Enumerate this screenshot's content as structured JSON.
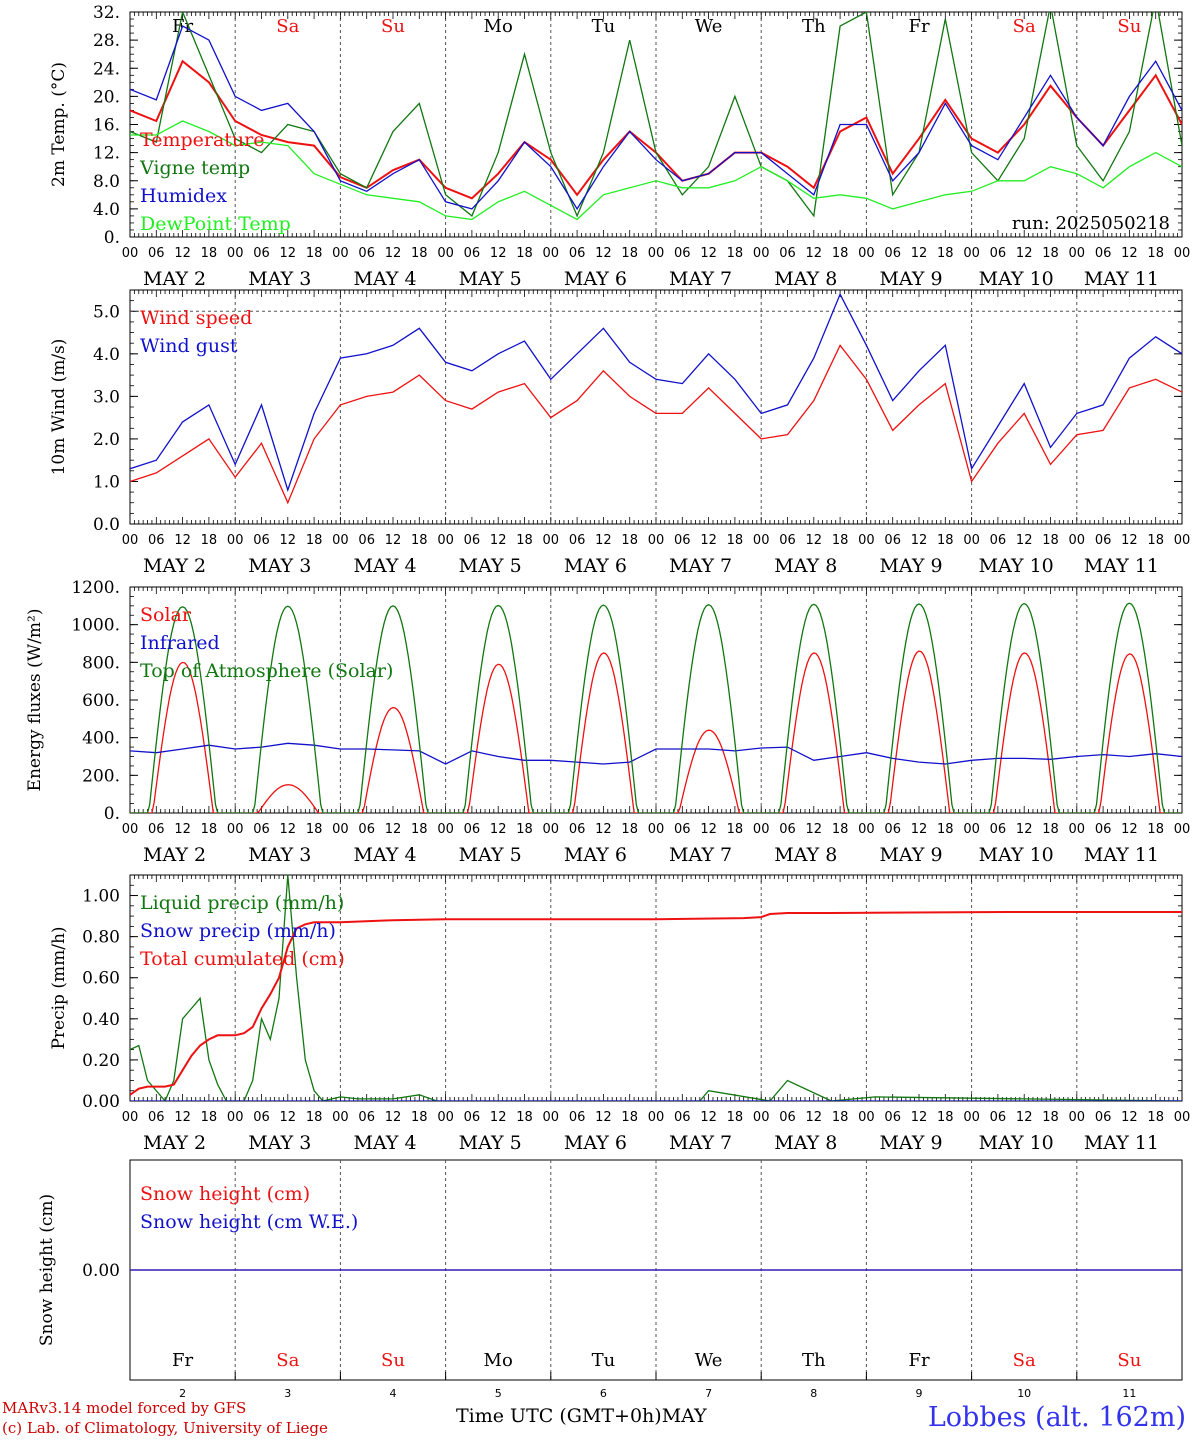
{
  "days": {
    "weekday": [
      "Fr",
      "Sa",
      "Su",
      "Mo",
      "Tu",
      "We",
      "Th",
      "Fr",
      "Sa",
      "Su"
    ],
    "weekend": [
      false,
      true,
      true,
      false,
      false,
      false,
      false,
      false,
      true,
      true
    ],
    "dates": [
      "MAY  2",
      "MAY  3",
      "MAY  4",
      "MAY  5",
      "MAY  6",
      "MAY  7",
      "MAY  8",
      "MAY  9",
      "MAY 10",
      "MAY 11"
    ],
    "daynum": [
      "2",
      "3",
      "4",
      "5",
      "6",
      "7",
      "8",
      "9",
      "10",
      "11"
    ],
    "hours": [
      "00",
      "06",
      "12",
      "18"
    ],
    "end_hour": "00"
  },
  "colors": {
    "red": "#ee1111",
    "green": "#117711",
    "blue": "#1111cc",
    "light_green": "#22ee22",
    "weekend": "#ee1111"
  },
  "footer": {
    "model": "MARv3.14 model forced by GFS",
    "lab": "(c) Lab. of Climatology, University of Liege",
    "time_label": "Time UTC (GMT+0h)",
    "month": "MAY",
    "station": "Lobbes (alt. 162m)"
  },
  "chart_data": [
    {
      "type": "line",
      "ylabel": "2m Temp. (°C)",
      "ylim": [
        0,
        32
      ],
      "yticks": [
        "0.",
        "4.0",
        "8.0",
        "12.",
        "16.",
        "20.",
        "24.",
        "28.",
        "32."
      ],
      "annotation": "run: 2025050218",
      "x_unit": "hours since MAY 2 00 UTC",
      "series": [
        {
          "name": "Temperature",
          "color": "red",
          "x": [
            0,
            6,
            12,
            18,
            24,
            30,
            36,
            42,
            48,
            54,
            60,
            66,
            72,
            78,
            84,
            90,
            96,
            102,
            108,
            114,
            120,
            126,
            132,
            138,
            144,
            150,
            156,
            162,
            168,
            174,
            180,
            186,
            192,
            198,
            204,
            210,
            216,
            222,
            228,
            234,
            240
          ],
          "values": [
            18,
            16.5,
            25,
            22,
            16.5,
            14.5,
            13.5,
            13,
            8.5,
            7,
            9.5,
            11,
            7,
            5.5,
            9,
            13.5,
            11,
            6,
            11,
            15,
            12,
            8,
            9,
            12,
            12,
            10,
            7,
            15,
            17,
            9,
            14,
            19.5,
            14,
            12,
            16,
            21.5,
            17,
            13,
            18,
            23,
            16
          ]
        },
        {
          "name": "Vigne temp",
          "color": "green",
          "x": [
            0,
            6,
            12,
            18,
            24,
            30,
            36,
            42,
            48,
            54,
            60,
            66,
            72,
            78,
            84,
            90,
            96,
            102,
            108,
            114,
            120,
            126,
            132,
            138,
            144,
            150,
            156,
            162,
            168,
            174,
            180,
            186,
            192,
            198,
            204,
            210,
            216,
            222,
            228,
            234,
            240
          ],
          "values": [
            15,
            13.5,
            32,
            23,
            14,
            12,
            16,
            15,
            9,
            7,
            15,
            19,
            6,
            3,
            12,
            26,
            12,
            3,
            12,
            28,
            12,
            6,
            10,
            20,
            10,
            8,
            3,
            30,
            32,
            6,
            12,
            31,
            12,
            8,
            14,
            33,
            13,
            8,
            15,
            34,
            13
          ]
        },
        {
          "name": "Humidex",
          "color": "blue",
          "x": [
            0,
            6,
            12,
            18,
            24,
            30,
            36,
            42,
            48,
            54,
            60,
            66,
            72,
            78,
            84,
            90,
            96,
            102,
            108,
            114,
            120,
            126,
            132,
            138,
            144,
            150,
            156,
            162,
            168,
            174,
            180,
            186,
            192,
            198,
            204,
            210,
            216,
            222,
            228,
            234,
            240
          ],
          "values": [
            21,
            19.5,
            30,
            28,
            20,
            18,
            19,
            15,
            8,
            6.5,
            9,
            11,
            5,
            4,
            8,
            13.5,
            10,
            4,
            10,
            15,
            11,
            8,
            9,
            12,
            12,
            9,
            6,
            16,
            16,
            8,
            12,
            19,
            13,
            11,
            17,
            23,
            17,
            13,
            20,
            25,
            18
          ]
        },
        {
          "name": "DewPoint Temp",
          "color": "light_green",
          "x": [
            0,
            6,
            12,
            18,
            24,
            30,
            36,
            42,
            48,
            54,
            60,
            66,
            72,
            78,
            84,
            90,
            96,
            102,
            108,
            114,
            120,
            126,
            132,
            138,
            144,
            150,
            156,
            162,
            168,
            174,
            180,
            186,
            192,
            198,
            204,
            210,
            216,
            222,
            228,
            234,
            240
          ],
          "values": [
            14.5,
            14.5,
            16.5,
            15,
            13,
            13.5,
            13,
            9,
            7.5,
            6,
            5.5,
            5,
            3,
            2.5,
            5,
            6.5,
            4.5,
            2.5,
            6,
            7,
            8,
            7,
            7,
            8,
            10,
            8,
            5.5,
            6,
            5.5,
            4,
            5,
            6,
            6.5,
            8,
            8,
            10,
            9,
            7,
            10,
            12,
            10
          ]
        }
      ]
    },
    {
      "type": "line",
      "ylabel": "10m Wind (m/s)",
      "ylim": [
        0,
        5.5
      ],
      "yticks": [
        "0.0",
        "1.0",
        "2.0",
        "3.0",
        "4.0",
        "5.0"
      ],
      "x_unit": "hours since MAY 2 00 UTC",
      "series": [
        {
          "name": "Wind speed",
          "color": "red",
          "x": [
            0,
            6,
            12,
            18,
            24,
            30,
            36,
            42,
            48,
            54,
            60,
            66,
            72,
            78,
            84,
            90,
            96,
            102,
            108,
            114,
            120,
            126,
            132,
            138,
            144,
            150,
            156,
            162,
            168,
            174,
            180,
            186,
            192,
            198,
            204,
            210,
            216,
            222,
            228,
            234,
            240
          ],
          "values": [
            1,
            1.2,
            1.6,
            2.0,
            1.1,
            1.9,
            0.5,
            2.0,
            2.8,
            3.0,
            3.1,
            3.5,
            2.9,
            2.7,
            3.1,
            3.3,
            2.5,
            2.9,
            3.6,
            3.0,
            2.6,
            2.6,
            3.2,
            2.6,
            2.0,
            2.1,
            2.9,
            4.2,
            3.4,
            2.2,
            2.8,
            3.3,
            1.0,
            1.9,
            2.6,
            1.4,
            2.1,
            2.2,
            3.2,
            3.4,
            3.1
          ]
        },
        {
          "name": "Wind gust",
          "color": "blue",
          "x": [
            0,
            6,
            12,
            18,
            24,
            30,
            36,
            42,
            48,
            54,
            60,
            66,
            72,
            78,
            84,
            90,
            96,
            102,
            108,
            114,
            120,
            126,
            132,
            138,
            144,
            150,
            156,
            162,
            168,
            174,
            180,
            186,
            192,
            198,
            204,
            210,
            216,
            222,
            228,
            234,
            240
          ],
          "values": [
            1.3,
            1.5,
            2.4,
            2.8,
            1.4,
            2.8,
            0.8,
            2.6,
            3.9,
            4.0,
            4.2,
            4.6,
            3.8,
            3.6,
            4.0,
            4.3,
            3.4,
            4.0,
            4.6,
            3.8,
            3.4,
            3.3,
            4.0,
            3.4,
            2.6,
            2.8,
            3.9,
            5.4,
            4.2,
            2.9,
            3.6,
            4.2,
            1.3,
            2.3,
            3.3,
            1.8,
            2.6,
            2.8,
            3.9,
            4.4,
            4.0
          ]
        }
      ]
    },
    {
      "type": "line",
      "ylabel": "Energy fluxes (W/m²)",
      "ylim": [
        0,
        1200
      ],
      "yticks": [
        "0.",
        "200.",
        "400.",
        "600.",
        "800.",
        "1000.",
        "1200."
      ],
      "x_unit": "hours since MAY 2 00 UTC",
      "series": [
        {
          "name": "Solar",
          "color": "red",
          "peaks": [
            800,
            150,
            560,
            790,
            850,
            440,
            850,
            860,
            850,
            845
          ]
        },
        {
          "name": "Infrared",
          "color": "blue",
          "x": [
            0,
            6,
            12,
            18,
            24,
            30,
            36,
            42,
            48,
            54,
            60,
            66,
            72,
            78,
            84,
            90,
            96,
            102,
            108,
            114,
            120,
            126,
            132,
            138,
            144,
            150,
            156,
            162,
            168,
            174,
            180,
            186,
            192,
            198,
            204,
            210,
            216,
            222,
            228,
            234,
            240
          ],
          "values": [
            330,
            320,
            340,
            360,
            340,
            350,
            370,
            360,
            340,
            340,
            335,
            330,
            260,
            330,
            300,
            280,
            280,
            270,
            260,
            270,
            340,
            340,
            340,
            330,
            345,
            350,
            280,
            300,
            320,
            290,
            270,
            260,
            280,
            290,
            290,
            285,
            300,
            310,
            300,
            315,
            300
          ]
        },
        {
          "name": "Top of Atmosphere (Solar)",
          "color": "green",
          "peaks": [
            1095,
            1098,
            1100,
            1102,
            1104,
            1106,
            1108,
            1110,
            1112,
            1114
          ]
        }
      ]
    },
    {
      "type": "line",
      "ylabel": "Precip (mm/h)",
      "ylim": [
        0,
        1.1
      ],
      "yticks": [
        "0.00",
        "0.20",
        "0.40",
        "0.60",
        "0.80",
        "1.00"
      ],
      "x_unit": "hours since MAY 2 00 UTC",
      "series": [
        {
          "name": "Liquid precip (mm/h)",
          "color": "green",
          "x": [
            0,
            2,
            4,
            8,
            10,
            12,
            14,
            16,
            18,
            20,
            22,
            24,
            26,
            28,
            30,
            32,
            34,
            36,
            38,
            40,
            42,
            44,
            48,
            52,
            60,
            66,
            70,
            96,
            130,
            132,
            146,
            150,
            160,
            170,
            240
          ],
          "values": [
            0.25,
            0.27,
            0.1,
            0,
            0.1,
            0.4,
            0.45,
            0.5,
            0.2,
            0.08,
            0,
            0,
            0,
            0.1,
            0.4,
            0.3,
            0.5,
            1.1,
            0.6,
            0.2,
            0.05,
            0,
            0.02,
            0.01,
            0.01,
            0.03,
            0,
            0,
            0,
            0.05,
            0,
            0.1,
            0,
            0.02,
            0
          ]
        },
        {
          "name": "Snow precip (mm/h)",
          "color": "blue",
          "x": [
            0,
            240
          ],
          "values": [
            0,
            0
          ]
        },
        {
          "name": "Total cumulated (cm)",
          "color": "red",
          "x": [
            0,
            2,
            4,
            8,
            10,
            12,
            14,
            16,
            18,
            20,
            22,
            24,
            26,
            28,
            30,
            32,
            34,
            36,
            38,
            40,
            42,
            44,
            48,
            60,
            72,
            96,
            120,
            140,
            144,
            146,
            150,
            160,
            200,
            240
          ],
          "values": [
            0.03,
            0.06,
            0.07,
            0.07,
            0.08,
            0.15,
            0.22,
            0.27,
            0.3,
            0.32,
            0.32,
            0.32,
            0.33,
            0.36,
            0.45,
            0.52,
            0.6,
            0.75,
            0.84,
            0.86,
            0.87,
            0.87,
            0.87,
            0.88,
            0.885,
            0.885,
            0.885,
            0.89,
            0.895,
            0.91,
            0.915,
            0.915,
            0.92,
            0.92
          ]
        }
      ]
    },
    {
      "type": "line",
      "ylabel": "Snow height (cm)",
      "yticks": [
        "0.00"
      ],
      "x_unit": "hours since MAY 2 00 UTC",
      "series": [
        {
          "name": "Snow height (cm)",
          "color": "red",
          "x": [
            0,
            240
          ],
          "values": [
            0,
            0
          ]
        },
        {
          "name": "Snow height (cm W.E.)",
          "color": "blue",
          "x": [
            0,
            240
          ],
          "values": [
            0,
            0
          ]
        }
      ]
    }
  ]
}
